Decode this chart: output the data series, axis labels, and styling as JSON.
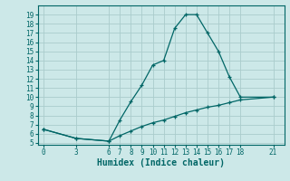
{
  "xlabel": "Humidex (Indice chaleur)",
  "bg_color": "#cce8e8",
  "line_color": "#006666",
  "grid_color": "#aacccc",
  "curve_x": [
    0,
    3,
    6,
    7,
    8,
    9,
    10,
    11,
    12,
    13,
    14,
    15,
    16,
    17,
    18,
    21
  ],
  "curve_y": [
    6.5,
    5.5,
    5.2,
    7.5,
    9.5,
    11.3,
    13.5,
    14.0,
    17.5,
    19.0,
    19.0,
    17.0,
    15.0,
    12.2,
    10.0,
    10.0
  ],
  "straight_x": [
    0,
    3,
    6,
    7,
    8,
    9,
    10,
    11,
    12,
    13,
    14,
    15,
    16,
    17,
    18,
    21
  ],
  "straight_y": [
    6.5,
    5.5,
    5.2,
    5.8,
    6.3,
    6.8,
    7.2,
    7.5,
    7.9,
    8.3,
    8.6,
    8.9,
    9.1,
    9.4,
    9.7,
    10.0
  ],
  "xticks": [
    0,
    3,
    6,
    7,
    8,
    9,
    10,
    11,
    12,
    13,
    14,
    15,
    16,
    17,
    18,
    21
  ],
  "yticks": [
    5,
    6,
    7,
    8,
    9,
    10,
    11,
    12,
    13,
    14,
    15,
    16,
    17,
    18,
    19
  ],
  "xlim": [
    -0.5,
    22
  ],
  "ylim": [
    4.8,
    20
  ],
  "tick_fontsize": 5.5,
  "xlabel_fontsize": 7.0
}
